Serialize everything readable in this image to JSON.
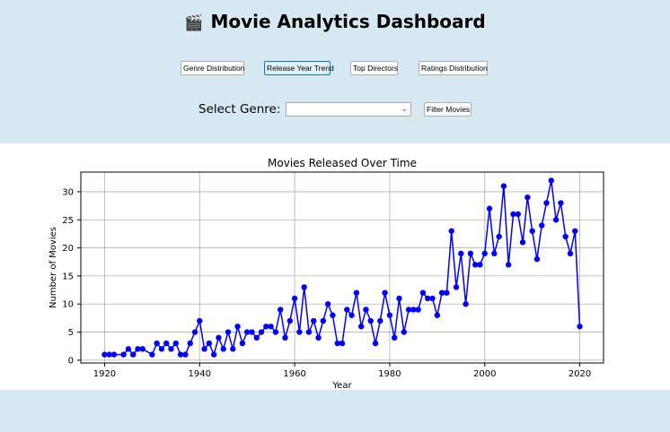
{
  "app": {
    "title": "Movie Analytics Dashboard",
    "title_icon": "clapperboard-icon"
  },
  "toolbar": {
    "buttons": [
      {
        "label": "Genre Distribution",
        "active": false
      },
      {
        "label": "Release Year Trend",
        "active": true
      },
      {
        "label": "Top Directors",
        "active": false
      },
      {
        "label": "Ratings Distribution",
        "active": false
      }
    ]
  },
  "filter": {
    "label": "Select Genre:",
    "selected_value": "",
    "button_label": "Filter Movies"
  },
  "colors": {
    "background": "#d6e8f1",
    "series": "#0000ff"
  },
  "chart_data": {
    "type": "line",
    "title": "Movies Released Over Time",
    "xlabel": "Year",
    "ylabel": "Number of Movies",
    "xlim": [
      1915,
      2025
    ],
    "ylim": [
      -0.5,
      33.5
    ],
    "x_ticks": [
      1920,
      1940,
      1960,
      1980,
      2000,
      2020
    ],
    "y_ticks": [
      0,
      5,
      10,
      15,
      20,
      25,
      30
    ],
    "grid": true,
    "marker": "circle",
    "series": [
      {
        "x": [
          1920,
          1921,
          1922,
          1924,
          1925,
          1926,
          1927,
          1928,
          1930,
          1931,
          1932,
          1933,
          1934,
          1935,
          1936,
          1937,
          1938,
          1939,
          1940,
          1941,
          1942,
          1943,
          1944,
          1945,
          1946,
          1947,
          1948,
          1949,
          1950,
          1951,
          1952,
          1953,
          1954,
          1955,
          1956,
          1957,
          1958,
          1959,
          1960,
          1961,
          1962,
          1963,
          1964,
          1965,
          1966,
          1967,
          1968,
          1969,
          1970,
          1971,
          1972,
          1973,
          1974,
          1975,
          1976,
          1977,
          1978,
          1979,
          1980,
          1981,
          1982,
          1983,
          1984,
          1985,
          1986,
          1987,
          1988,
          1989,
          1990,
          1991,
          1992,
          1993,
          1994,
          1995,
          1996,
          1997,
          1998,
          1999,
          2000,
          2001,
          2002,
          2003,
          2004,
          2005,
          2006,
          2007,
          2008,
          2009,
          2010,
          2011,
          2012,
          2013,
          2014,
          2015,
          2016,
          2017,
          2018,
          2019,
          2020
        ],
        "y": [
          1,
          1,
          1,
          1,
          2,
          1,
          2,
          2,
          1,
          3,
          2,
          3,
          2,
          3,
          1,
          1,
          3,
          5,
          7,
          2,
          3,
          1,
          4,
          2,
          5,
          2,
          6,
          3,
          5,
          5,
          4,
          5,
          6,
          6,
          5,
          9,
          4,
          7,
          11,
          5,
          13,
          5,
          7,
          4,
          7,
          10,
          8,
          3,
          3,
          9,
          8,
          12,
          6,
          9,
          7,
          3,
          7,
          12,
          8,
          4,
          11,
          5,
          9,
          9,
          9,
          12,
          11,
          11,
          8,
          12,
          12,
          23,
          13,
          19,
          10,
          19,
          17,
          17,
          19,
          27,
          19,
          22,
          31,
          17,
          26,
          26,
          21,
          29,
          23,
          18,
          24,
          28,
          32,
          25,
          28,
          22,
          19,
          23,
          6
        ]
      }
    ]
  }
}
